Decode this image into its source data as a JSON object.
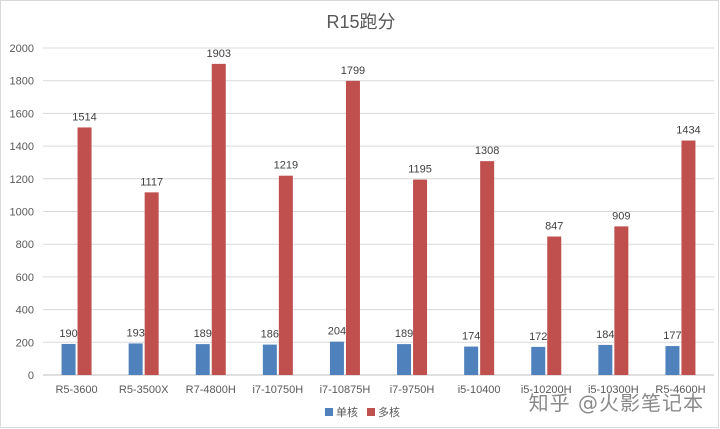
{
  "watermark": "知乎 @火影笔记本",
  "chart_data": {
    "type": "bar",
    "title": "R15跑分",
    "xlabel": "",
    "ylabel": "",
    "ylim": [
      0,
      2000
    ],
    "yticks": [
      0,
      200,
      400,
      600,
      800,
      1000,
      1200,
      1400,
      1600,
      1800,
      2000
    ],
    "grid": true,
    "legend_position": "bottom",
    "data_labels": true,
    "categories": [
      "R5-3600",
      "R5-3500X",
      "R7-4800H",
      "i7-10750H",
      "i7-10875H",
      "i7-9750H",
      "i5-10400",
      "i5-10200H",
      "i5-10300H",
      "R5-4600H"
    ],
    "series": [
      {
        "name": "单核",
        "color": "#4f81bd",
        "values": [
          190,
          193,
          189,
          186,
          204,
          189,
          174,
          172,
          184,
          177
        ]
      },
      {
        "name": "多核",
        "color": "#c0504d",
        "values": [
          1514,
          1117,
          1903,
          1219,
          1799,
          1195,
          1308,
          847,
          909,
          1434
        ]
      }
    ]
  }
}
